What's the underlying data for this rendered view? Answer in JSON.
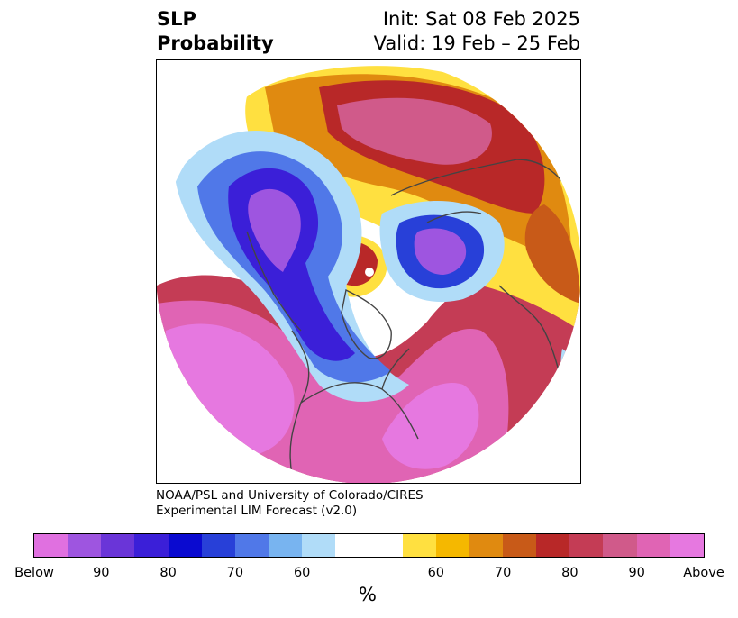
{
  "title": {
    "left_line1": "SLP",
    "left_line2": "Probability",
    "right_line1": "Init: Sat 08 Feb 2025",
    "right_line2": "Valid: 19 Feb – 25 Feb"
  },
  "credit": {
    "line1": "NOAA/PSL and University of Colorado/CIRES",
    "line2": "Experimental LIM Forecast (v2.0)"
  },
  "colorbar": {
    "unit": "%",
    "colors": [
      "#e070e0",
      "#9e55e0",
      "#6a35d8",
      "#3b1fd8",
      "#0a0ad0",
      "#2840d8",
      "#5078e8",
      "#78b4f0",
      "#b0dcf8",
      "#ffffff",
      "#ffffff",
      "#ffe040",
      "#f5b800",
      "#e08a10",
      "#c85a18",
      "#b82828",
      "#c43c55",
      "#d05a8a",
      "#e064b4",
      "#e678e0"
    ],
    "tick_labels": [
      "Below",
      "90",
      "80",
      "70",
      "60",
      "60",
      "70",
      "80",
      "90",
      "Above"
    ]
  },
  "map": {
    "colors": {
      "above_far": "#e678e0",
      "above_90": "#e064b4",
      "above_80": "#d05a8a",
      "above_75": "#c43c55",
      "above_70": "#b82828",
      "above_65": "#c85a18",
      "above_60": "#e08a10",
      "above_55": "#f5b800",
      "above_50": "#ffe040",
      "below_50": "#b0dcf8",
      "below_55": "#78b4f0",
      "below_60": "#5078e8",
      "below_65": "#2840d8",
      "below_70": "#0a0ad0",
      "below_75": "#3b1fd8",
      "below_80": "#6a35d8",
      "below_90": "#9e55e0",
      "coast": "#444444"
    }
  }
}
